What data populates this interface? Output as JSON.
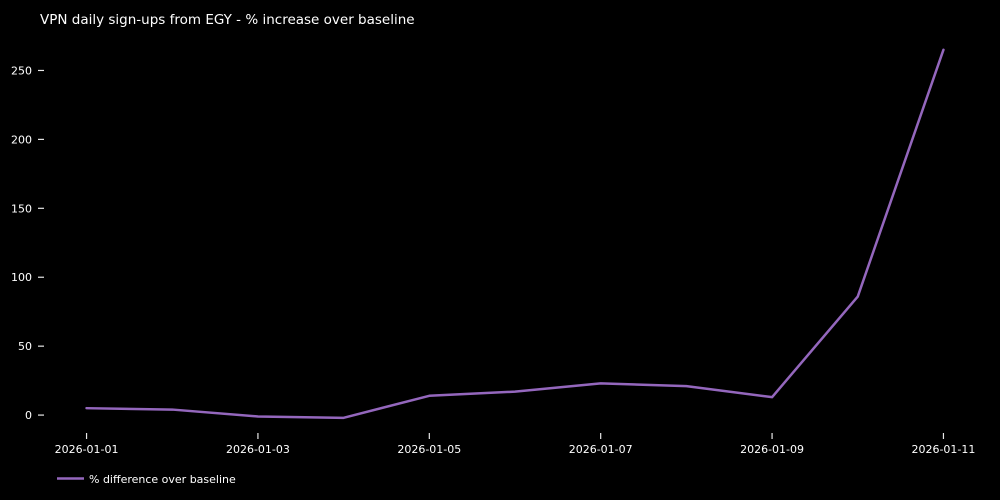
{
  "chart_data": {
    "type": "line",
    "title": "VPN daily sign-ups from EGY - % increase over baseline",
    "x": [
      "2026-01-01",
      "2026-01-02",
      "2026-01-03",
      "2026-01-04",
      "2026-01-05",
      "2026-01-06",
      "2026-01-07",
      "2026-01-08",
      "2026-01-09",
      "2026-01-10",
      "2026-01-11"
    ],
    "series": [
      {
        "name": "% difference over baseline",
        "values": [
          5,
          4,
          -1,
          -2,
          14,
          17,
          23,
          21,
          13,
          86,
          265
        ],
        "color": "#9467bd"
      }
    ],
    "xtick_labels": [
      "2026-01-01",
      "2026-01-03",
      "2026-01-05",
      "2026-01-07",
      "2026-01-09",
      "2026-01-11"
    ],
    "yticks": [
      0,
      50,
      100,
      150,
      200,
      250
    ],
    "xlim": [
      -0.45,
      10.45
    ],
    "ylim": [
      -13,
      275
    ],
    "xlabel": "",
    "ylabel": "",
    "grid": false,
    "legend_position": "lower-left",
    "background_color": "#000000",
    "text_color": "#ffffff",
    "tick_color": "#e8e8e8"
  }
}
